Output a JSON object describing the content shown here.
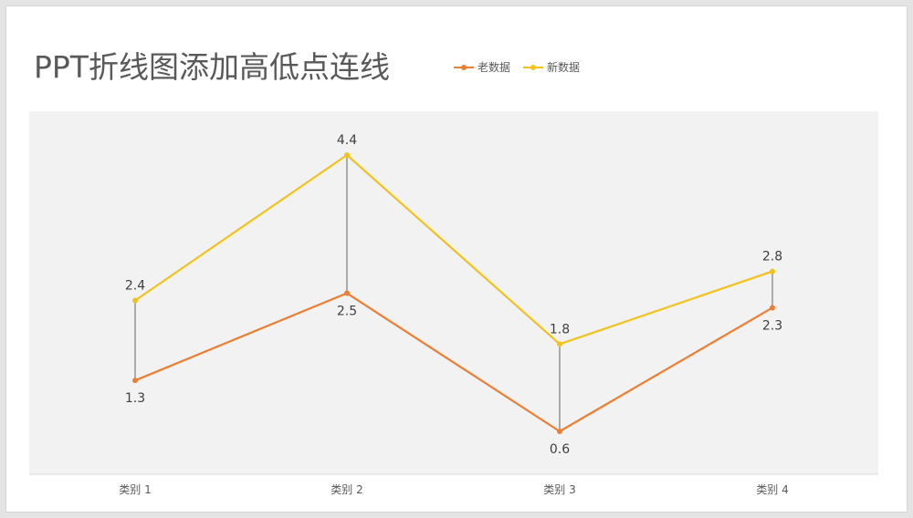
{
  "chart_data": {
    "type": "line",
    "title": "PPT折线图添加高低点连线",
    "categories": [
      "类别 1",
      "类别 2",
      "类别 3",
      "类别 4"
    ],
    "series": [
      {
        "name": "老数据",
        "values": [
          1.3,
          2.5,
          0.6,
          2.3
        ],
        "color": "#ED7D31"
      },
      {
        "name": "新数据",
        "values": [
          2.4,
          4.4,
          1.8,
          2.8
        ],
        "color": "#F2C21A"
      }
    ],
    "high_low_lines": true,
    "ylim": [
      0,
      5
    ],
    "grid": false,
    "legend": "top",
    "plot_background": "#f2f2f2"
  }
}
